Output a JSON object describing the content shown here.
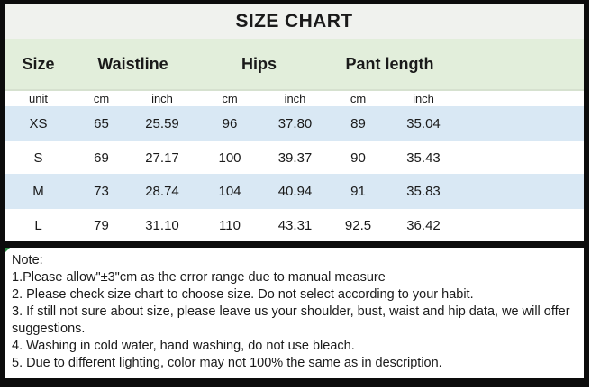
{
  "title": "SIZE CHART",
  "colors": {
    "title_bg": "#f0f2ee",
    "header_green": "#e2eedb",
    "row_blue": "#d9e8f4",
    "border_black": "#0c0c0c",
    "text": "#1a1a1a",
    "note_marker_green": "#2f8f46"
  },
  "table": {
    "groups": [
      "Size",
      "Waistline",
      "Hips",
      "Pant length"
    ],
    "unit_row": [
      "unit",
      "cm",
      "inch",
      "cm",
      "inch",
      "cm",
      "inch"
    ],
    "rows": [
      {
        "size": "XS",
        "values": [
          "65",
          "25.59",
          "96",
          "37.80",
          "89",
          "35.04"
        ]
      },
      {
        "size": "S",
        "values": [
          "69",
          "27.17",
          "100",
          "39.37",
          "90",
          "35.43"
        ]
      },
      {
        "size": "M",
        "values": [
          "73",
          "28.74",
          "104",
          "40.94",
          "91",
          "35.83"
        ]
      },
      {
        "size": "L",
        "values": [
          "79",
          "31.10",
          "110",
          "43.31",
          "92.5",
          "36.42"
        ]
      }
    ]
  },
  "notes": {
    "label": "Note:",
    "items": [
      "1.Please allow\"±3\"cm as the error range due to manual measure",
      "2. Please check size chart to choose size. Do not select according to your habit.",
      "3. If still not sure about size, please leave us your shoulder, bust, waist and hip data, we will offer suggestions.",
      "4. Washing in cold water, hand washing, do not use bleach.",
      "5. Due to different lighting, color may not 100% the same as in description."
    ]
  },
  "chart_data": {
    "type": "table",
    "title": "SIZE CHART",
    "column_groups": [
      "Size",
      "Waistline",
      "Hips",
      "Pant length"
    ],
    "columns": [
      "Size",
      "Waistline (cm)",
      "Waistline (inch)",
      "Hips (cm)",
      "Hips (inch)",
      "Pant length (cm)",
      "Pant length (inch)"
    ],
    "rows": [
      [
        "XS",
        65,
        25.59,
        96,
        37.8,
        89,
        35.04
      ],
      [
        "S",
        69,
        27.17,
        100,
        39.37,
        90,
        35.43
      ],
      [
        "M",
        73,
        28.74,
        104,
        40.94,
        91,
        35.83
      ],
      [
        "L",
        79,
        31.1,
        110,
        43.31,
        92.5,
        36.42
      ]
    ],
    "notes": [
      "1.Please allow\"±3\"cm as the error range due to manual measure",
      "2. Please check size chart to choose size. Do not select according to your habit.",
      "3. If still not sure about size, please leave us your shoulder, bust, waist and hip data, we will offer suggestions.",
      "4. Washing in cold water, hand washing, do not use bleach.",
      "5. Due to different lighting, color may not 100% the same as in description."
    ]
  }
}
